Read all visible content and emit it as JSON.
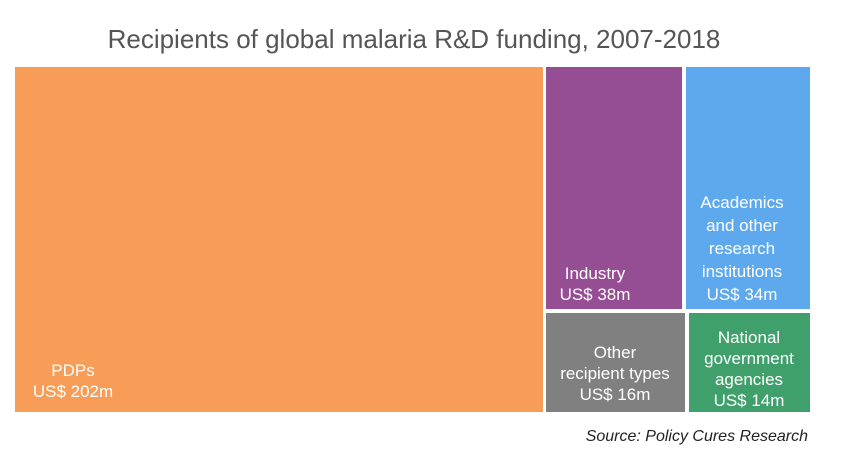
{
  "chart_data": {
    "type": "treemap",
    "title": "Recipients of global malaria R&D funding, 2007-2018",
    "unit": "US$ m",
    "series": [
      {
        "name": "PDPs",
        "value": 202,
        "value_label": "US$ 202m",
        "color": "#F79D58",
        "label_lines": [
          "PDPs",
          "US$ 202m"
        ]
      },
      {
        "name": "Industry",
        "value": 38,
        "value_label": "US$ 38m",
        "color": "#954E94",
        "label_lines": [
          "Industry",
          "US$ 38m"
        ]
      },
      {
        "name": "Academics and other research institutions",
        "value": 34,
        "value_label": "US$ 34m",
        "color": "#5EA9EE",
        "label_lines": [
          "Academics",
          "and other",
          "research",
          "institutions",
          "US$ 34m"
        ]
      },
      {
        "name": "Other recipient types",
        "value": 16,
        "value_label": "US$ 16m",
        "color": "#808080",
        "label_lines": [
          "Other",
          "recipient types",
          "US$ 16m"
        ]
      },
      {
        "name": "National government agencies",
        "value": 14,
        "value_label": "US$ 14m",
        "color": "#3FA06C",
        "label_lines": [
          "National",
          "government",
          "agencies",
          "US$ 14m"
        ]
      }
    ]
  },
  "source": "Source: Policy Cures Research"
}
